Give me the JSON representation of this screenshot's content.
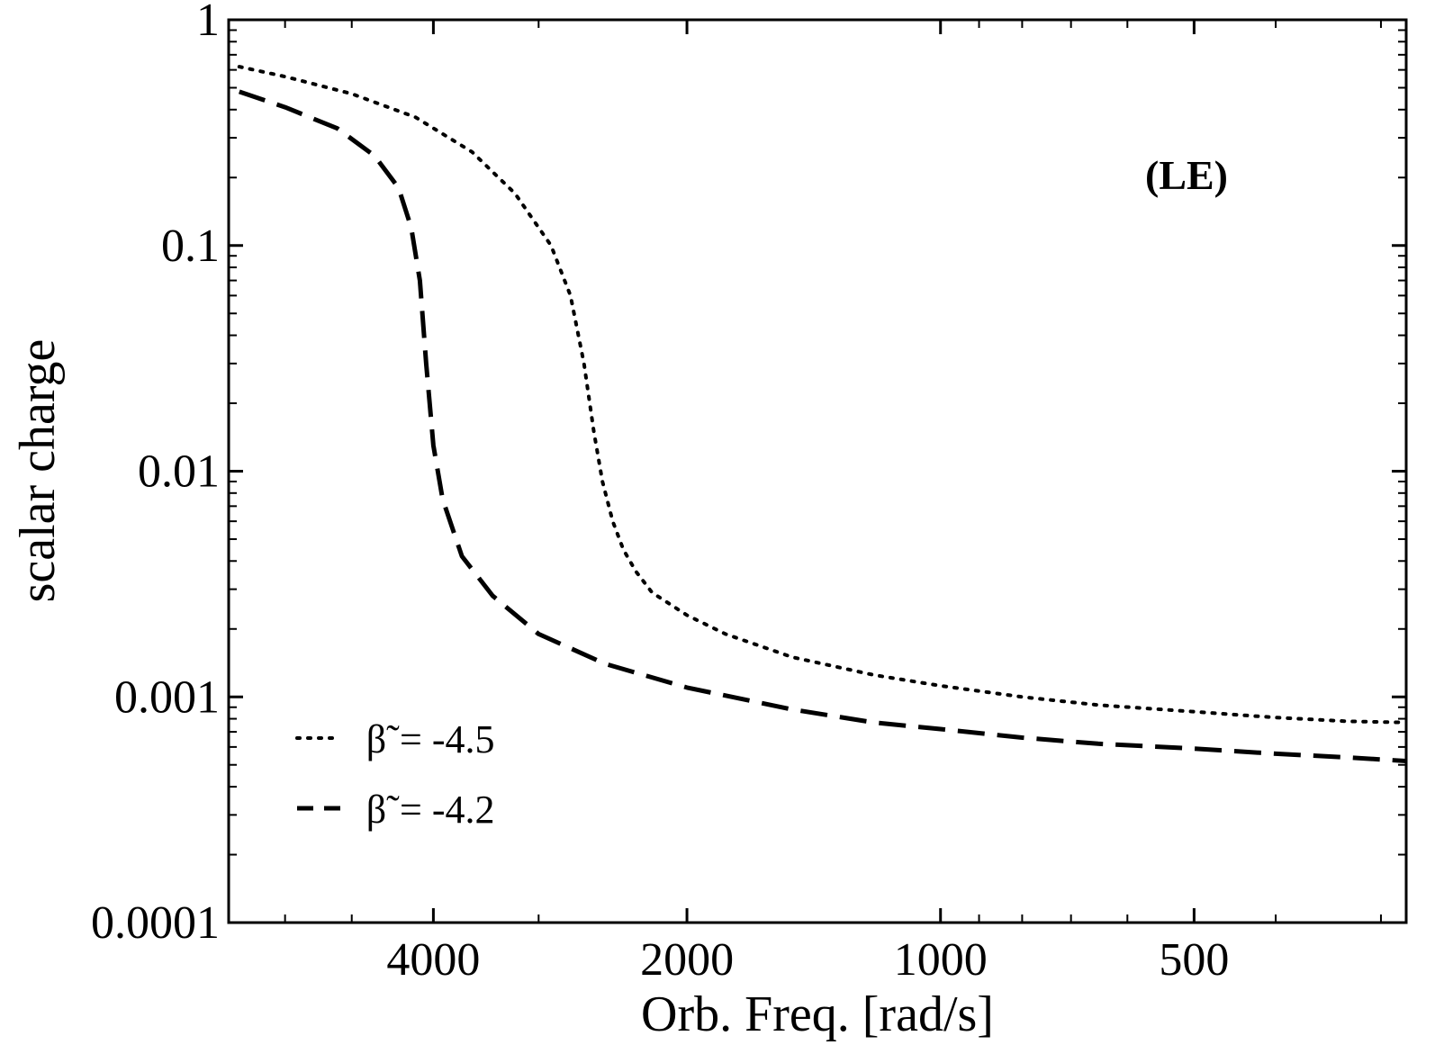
{
  "chart_data": {
    "type": "line",
    "xlabel": "Orb. Freq. [rad/s]",
    "ylabel": "scalar charge",
    "x_scale": "log",
    "x_reversed": true,
    "y_scale": "log",
    "xlim": [
      7000,
      280
    ],
    "ylim": [
      0.0001,
      1
    ],
    "x_ticks": [
      4000,
      2000,
      1000,
      500
    ],
    "x_tick_labels": [
      "4000",
      "2000",
      "1000",
      "500"
    ],
    "y_ticks": [
      1,
      0.1,
      0.01,
      0.001,
      0.0001
    ],
    "y_tick_labels": [
      "1",
      "0.1",
      "0.01",
      "0.001",
      "0.0001"
    ],
    "grid": false,
    "legend_position": "bottom-left",
    "annotation": "(LE)",
    "series": [
      {
        "name": "β̃ = -4.5",
        "legend_symbol": "β̃",
        "legend_value": "= -4.5",
        "style": "dotted",
        "color": "#000000",
        "x": [
          6800,
          6000,
          5000,
          4200,
          3600,
          3200,
          2900,
          2750,
          2650,
          2580,
          2520,
          2450,
          2380,
          2300,
          2200,
          2000,
          1800,
          1500,
          1200,
          1000,
          800,
          650,
          500,
          400,
          330,
          280
        ],
        "y": [
          0.62,
          0.56,
          0.47,
          0.37,
          0.26,
          0.17,
          0.1,
          0.06,
          0.03,
          0.015,
          0.009,
          0.006,
          0.0045,
          0.0036,
          0.0029,
          0.0023,
          0.0019,
          0.0015,
          0.00125,
          0.00112,
          0.001,
          0.00092,
          0.00086,
          0.00081,
          0.00078,
          0.00077
        ]
      },
      {
        "name": "β̃ = -4.2",
        "legend_symbol": "β̃",
        "legend_value": "= -4.2",
        "style": "dashed",
        "color": "#000000",
        "x": [
          6800,
          6000,
          5200,
          4700,
          4400,
          4250,
          4150,
          4080,
          4000,
          3900,
          3700,
          3400,
          3000,
          2500,
          2000,
          1500,
          1200,
          1000,
          800,
          650,
          500,
          400,
          330,
          280
        ],
        "y": [
          0.48,
          0.41,
          0.33,
          0.25,
          0.18,
          0.12,
          0.07,
          0.03,
          0.013,
          0.0075,
          0.0042,
          0.0028,
          0.0019,
          0.0014,
          0.0011,
          0.00088,
          0.00077,
          0.00072,
          0.00066,
          0.00062,
          0.00059,
          0.00056,
          0.00054,
          0.00052
        ]
      }
    ]
  }
}
